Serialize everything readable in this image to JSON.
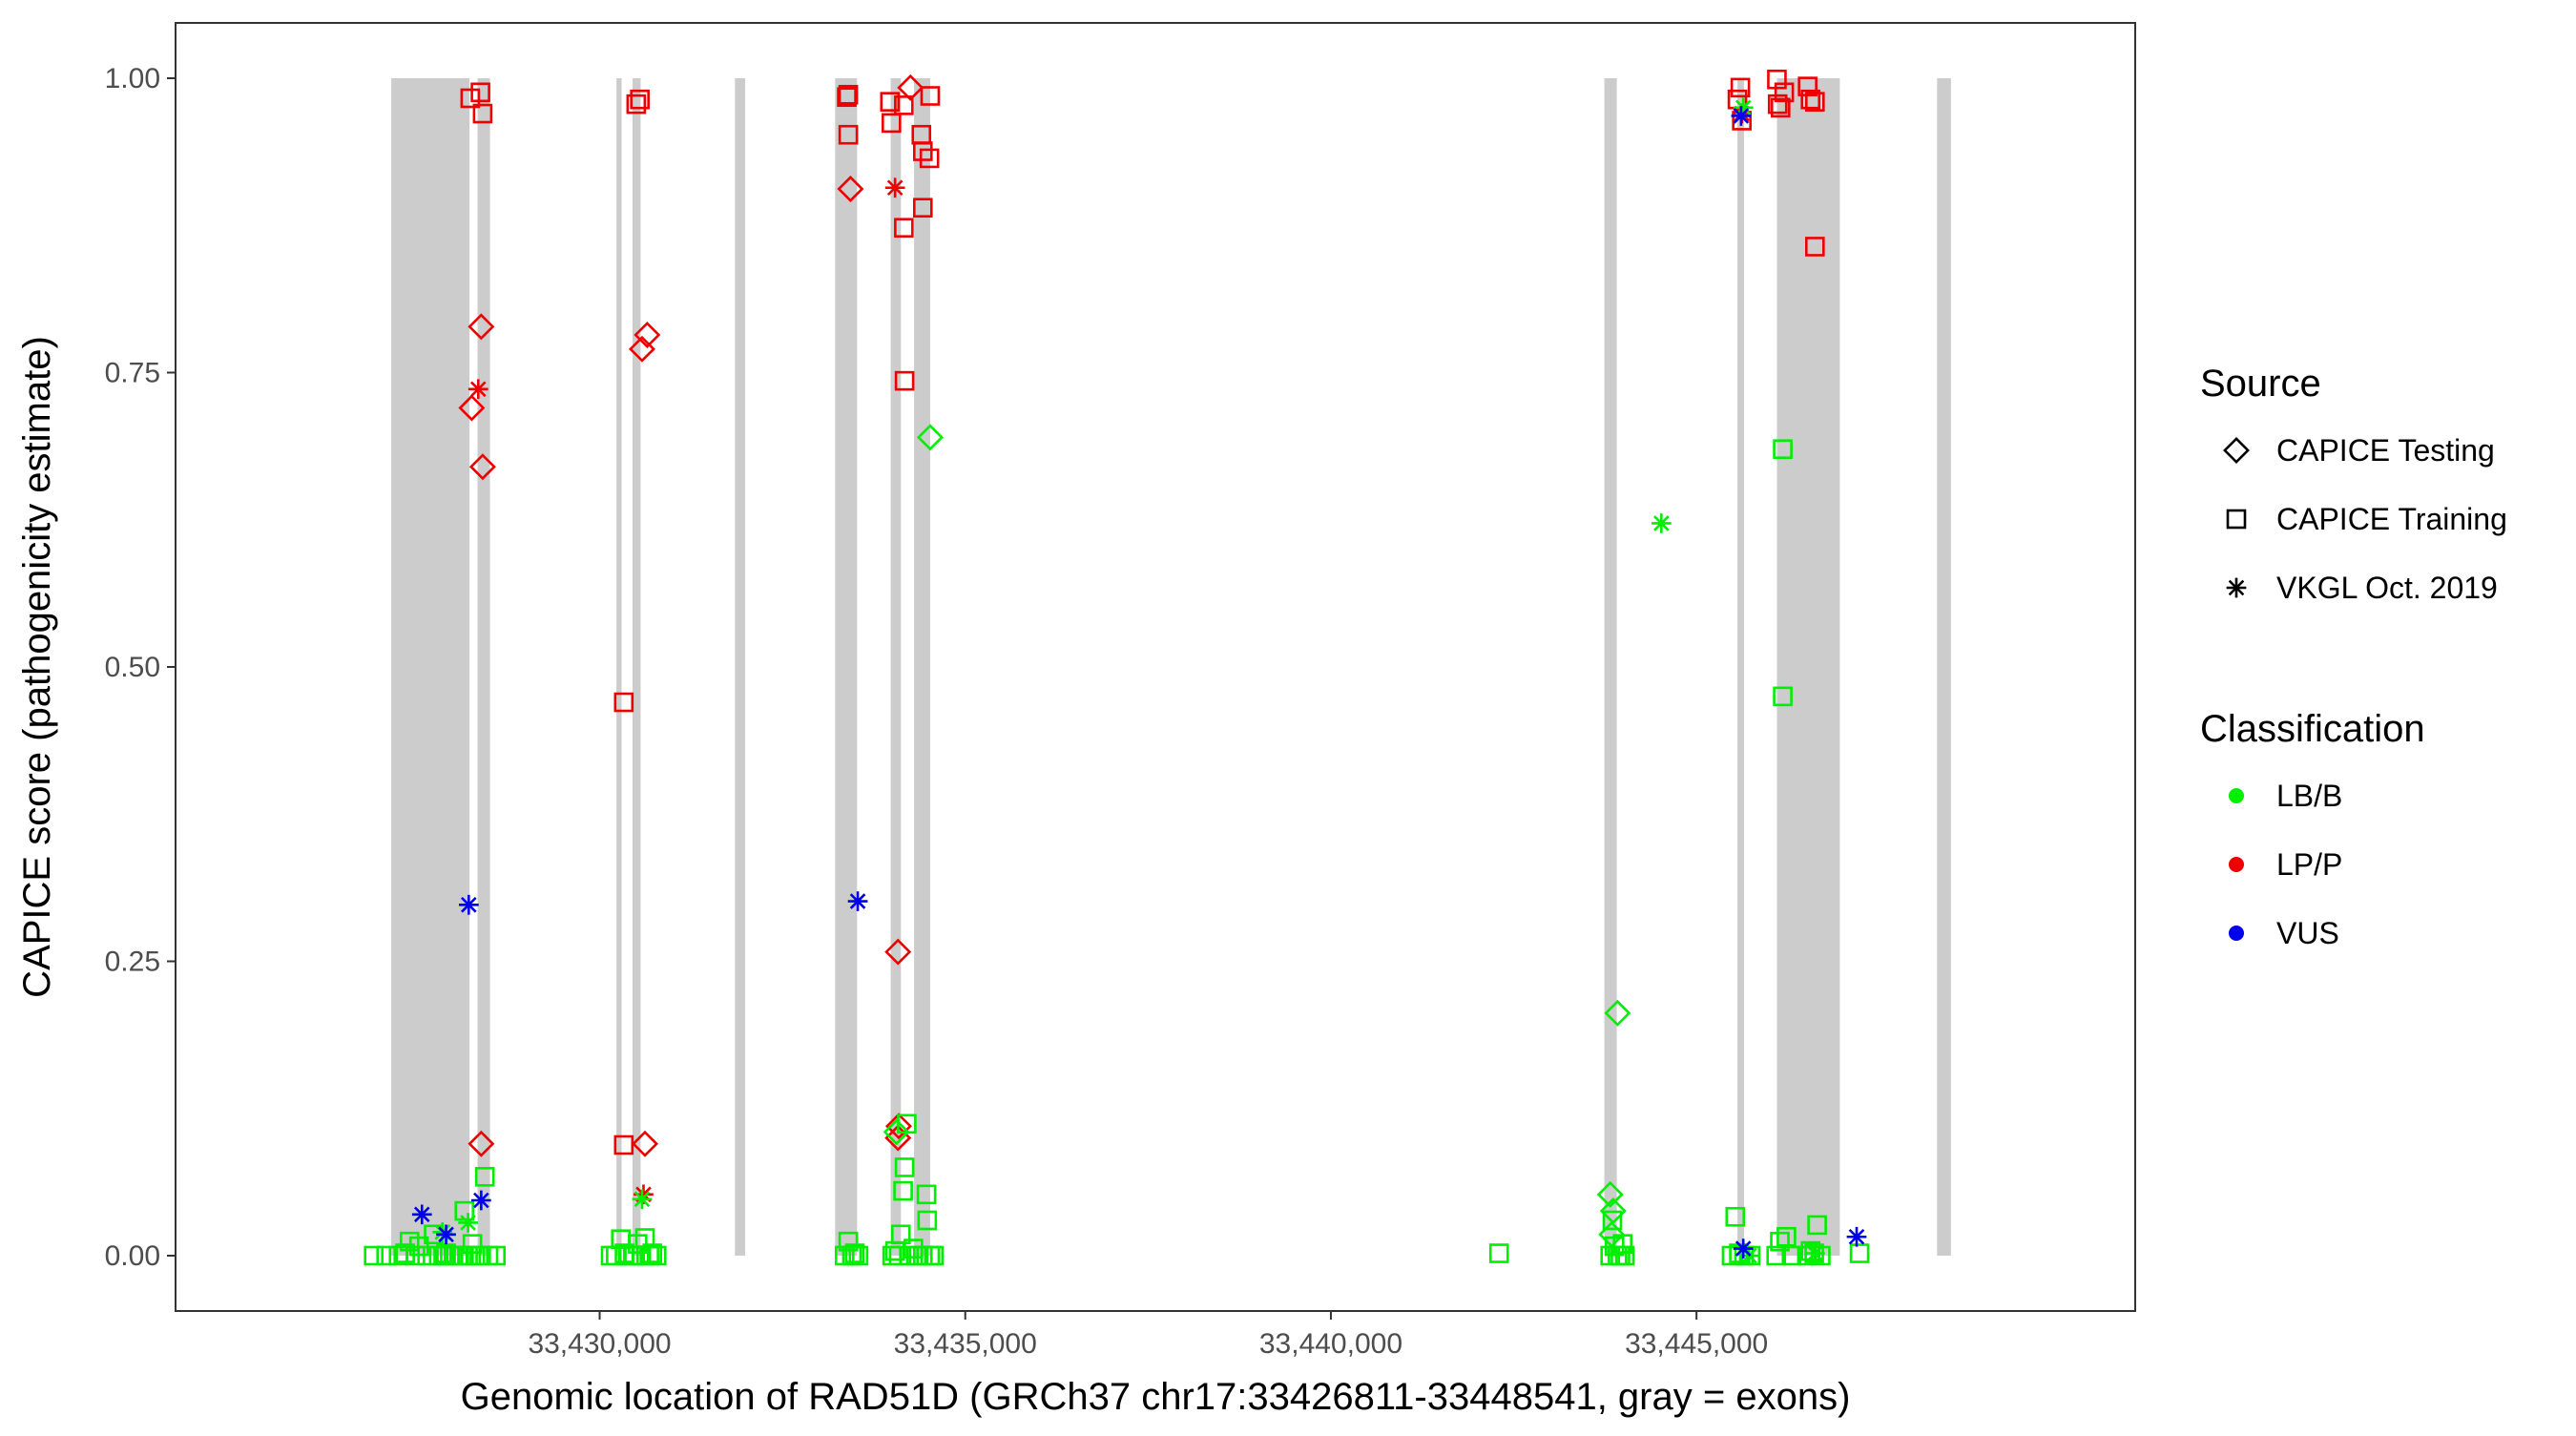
{
  "chart_data": {
    "type": "scatter",
    "xlabel": "Genomic location of RAD51D (GRCh37 chr17:33426811-33448541, gray = exons)",
    "ylabel": "CAPICE score (pathogenicity estimate)",
    "xlim": [
      33424200,
      33451000
    ],
    "ylim": [
      -0.047,
      1.047
    ],
    "x_ticks": [
      33430000,
      33435000,
      33440000,
      33445000
    ],
    "x_tick_labels": [
      "33,430,000",
      "33,435,000",
      "33,440,000",
      "33,445,000"
    ],
    "y_ticks": [
      0,
      0.25,
      0.5,
      0.75,
      1.0
    ],
    "y_tick_labels": [
      "0.00",
      "0.25",
      "0.50",
      "0.75",
      "1.00"
    ],
    "grid": false,
    "legend_placement": "right",
    "exon_color": "#cccccc",
    "exons": [
      [
        33427150,
        33428220
      ],
      [
        33428330,
        33428500
      ],
      [
        33430230,
        33430300
      ],
      [
        33430450,
        33430560
      ],
      [
        33431850,
        33431990
      ],
      [
        33433220,
        33433520
      ],
      [
        33433980,
        33434120
      ],
      [
        33434300,
        33434520
      ],
      [
        33443740,
        33443910
      ],
      [
        33445560,
        33445650
      ],
      [
        33446100,
        33446960
      ],
      [
        33448290,
        33448480
      ]
    ],
    "shape_legend": {
      "title": "Source",
      "items": [
        {
          "label": "CAPICE Testing",
          "shape": "diamond"
        },
        {
          "label": "CAPICE Training",
          "shape": "square"
        },
        {
          "label": "VKGL Oct. 2019",
          "shape": "asterisk"
        }
      ]
    },
    "color_legend": {
      "title": "Classification",
      "items": [
        {
          "label": "LB/B",
          "color": "#00ee00"
        },
        {
          "label": "LP/P",
          "color": "#ee0000"
        },
        {
          "label": "VUS",
          "color": "#0000ee"
        }
      ]
    },
    "series": [
      {
        "source": "CAPICE Training",
        "classification": "LP/P",
        "points": [
          [
            33428230,
            0.983
          ],
          [
            33428370,
            0.988
          ],
          [
            33428400,
            0.97
          ],
          [
            33430330,
            0.47
          ],
          [
            33430330,
            0.094
          ],
          [
            33430500,
            0.978
          ],
          [
            33430550,
            0.982
          ],
          [
            33433380,
            0.984
          ],
          [
            33433400,
            0.986
          ],
          [
            33433400,
            0.952
          ],
          [
            33433970,
            0.98
          ],
          [
            33433990,
            0.962
          ],
          [
            33434160,
            0.977
          ],
          [
            33434160,
            0.873
          ],
          [
            33434170,
            0.743
          ],
          [
            33434400,
            0.952
          ],
          [
            33434420,
            0.938
          ],
          [
            33434420,
            0.89
          ],
          [
            33434510,
            0.932
          ],
          [
            33434520,
            0.985
          ],
          [
            33445560,
            0.982
          ],
          [
            33445600,
            0.992
          ],
          [
            33445620,
            0.964
          ],
          [
            33446100,
            0.999
          ],
          [
            33446110,
            0.978
          ],
          [
            33446150,
            0.975
          ],
          [
            33446200,
            0.988
          ],
          [
            33446520,
            0.993
          ],
          [
            33446560,
            0.982
          ],
          [
            33446620,
            0.98
          ],
          [
            33446620,
            0.857
          ]
        ]
      },
      {
        "source": "CAPICE Testing",
        "classification": "LP/P",
        "points": [
          [
            33428250,
            0.72
          ],
          [
            33428380,
            0.789
          ],
          [
            33428400,
            0.67
          ],
          [
            33428380,
            0.095
          ],
          [
            33430580,
            0.77
          ],
          [
            33430650,
            0.782
          ],
          [
            33430620,
            0.095
          ],
          [
            33433430,
            0.906
          ],
          [
            33434080,
            0.258
          ],
          [
            33434080,
            0.1
          ],
          [
            33434090,
            0.11
          ],
          [
            33434250,
            0.992
          ]
        ]
      },
      {
        "source": "VKGL Oct. 2019",
        "classification": "LP/P",
        "points": [
          [
            33428340,
            0.736
          ],
          [
            33430600,
            0.052
          ],
          [
            33434040,
            0.907
          ],
          [
            33445620,
            0.97
          ]
        ]
      },
      {
        "source": "CAPICE Training",
        "classification": "LB/B",
        "points": [
          [
            33426910,
            0.0
          ],
          [
            33427080,
            0.0
          ],
          [
            33427250,
            0.0
          ],
          [
            33427340,
            0.002
          ],
          [
            33427400,
            0.012
          ],
          [
            33427480,
            0.0
          ],
          [
            33427530,
            0.008
          ],
          [
            33427640,
            0.0
          ],
          [
            33427730,
            0.018
          ],
          [
            33427800,
            0.0
          ],
          [
            33427860,
            0.0
          ],
          [
            33427900,
            0.002
          ],
          [
            33427950,
            0.0
          ],
          [
            33428000,
            0.0
          ],
          [
            33428080,
            0.0
          ],
          [
            33428120,
            0.0
          ],
          [
            33428150,
            0.038
          ],
          [
            33428200,
            0.0
          ],
          [
            33428260,
            0.01
          ],
          [
            33428300,
            0.0
          ],
          [
            33428380,
            0.0
          ],
          [
            33428430,
            0.067
          ],
          [
            33428480,
            0.0
          ],
          [
            33428580,
            0.0
          ],
          [
            33430150,
            0.0
          ],
          [
            33430220,
            0.0
          ],
          [
            33430290,
            0.014
          ],
          [
            33430340,
            0.002
          ],
          [
            33430400,
            0.0
          ],
          [
            33430470,
            0.0
          ],
          [
            33430520,
            0.01
          ],
          [
            33430570,
            0.0
          ],
          [
            33430620,
            0.015
          ],
          [
            33430680,
            0.0
          ],
          [
            33430720,
            0.002
          ],
          [
            33430780,
            0.0
          ],
          [
            33433350,
            0.0
          ],
          [
            33433400,
            0.012
          ],
          [
            33433450,
            0.0
          ],
          [
            33433490,
            0.002
          ],
          [
            33433540,
            0.0
          ],
          [
            33434000,
            0.0
          ],
          [
            33434040,
            0.004
          ],
          [
            33434090,
            0.0
          ],
          [
            33434120,
            0.018
          ],
          [
            33434150,
            0.055
          ],
          [
            33434170,
            0.075
          ],
          [
            33434200,
            0.112
          ],
          [
            33434230,
            0.0
          ],
          [
            33434290,
            0.006
          ],
          [
            33434360,
            0.0
          ],
          [
            33434420,
            0.0
          ],
          [
            33434470,
            0.052
          ],
          [
            33434480,
            0.03
          ],
          [
            33434520,
            0.0
          ],
          [
            33434570,
            0.0
          ],
          [
            33442300,
            0.002
          ],
          [
            33443820,
            0.0
          ],
          [
            33443850,
            0.03
          ],
          [
            33443880,
            0.008
          ],
          [
            33443920,
            0.0
          ],
          [
            33443960,
            0.0
          ],
          [
            33443990,
            0.01
          ],
          [
            33444020,
            0.0
          ],
          [
            33445480,
            0.0
          ],
          [
            33445530,
            0.033
          ],
          [
            33445580,
            0.002
          ],
          [
            33445650,
            0.0
          ],
          [
            33445740,
            0.0
          ],
          [
            33446090,
            0.0
          ],
          [
            33446140,
            0.012
          ],
          [
            33446180,
            0.685
          ],
          [
            33446180,
            0.475
          ],
          [
            33446230,
            0.016
          ],
          [
            33446300,
            0.0
          ],
          [
            33446510,
            0.0
          ],
          [
            33446560,
            0.004
          ],
          [
            33446610,
            0.002
          ],
          [
            33446650,
            0.026
          ],
          [
            33446700,
            0.0
          ],
          [
            33447230,
            0.002
          ]
        ]
      },
      {
        "source": "CAPICE Testing",
        "classification": "LB/B",
        "points": [
          [
            33434520,
            0.695
          ],
          [
            33443920,
            0.206
          ],
          [
            33443820,
            0.052
          ],
          [
            33443860,
            0.038
          ],
          [
            33443840,
            0.018
          ],
          [
            33434060,
            0.105
          ]
        ]
      },
      {
        "source": "VKGL Oct. 2019",
        "classification": "LB/B",
        "points": [
          [
            33427850,
            0.02
          ],
          [
            33428200,
            0.028
          ],
          [
            33430580,
            0.048
          ],
          [
            33444520,
            0.622
          ],
          [
            33445640,
            0.975
          ],
          [
            33445720,
            0.0
          ],
          [
            33446620,
            0.002
          ]
        ]
      },
      {
        "source": "VKGL Oct. 2019",
        "classification": "VUS",
        "points": [
          [
            33427570,
            0.035
          ],
          [
            33427900,
            0.018
          ],
          [
            33428210,
            0.298
          ],
          [
            33428380,
            0.047
          ],
          [
            33433530,
            0.301
          ],
          [
            33445610,
            0.968
          ],
          [
            33445640,
            0.006
          ],
          [
            33447190,
            0.016
          ]
        ]
      }
    ]
  }
}
